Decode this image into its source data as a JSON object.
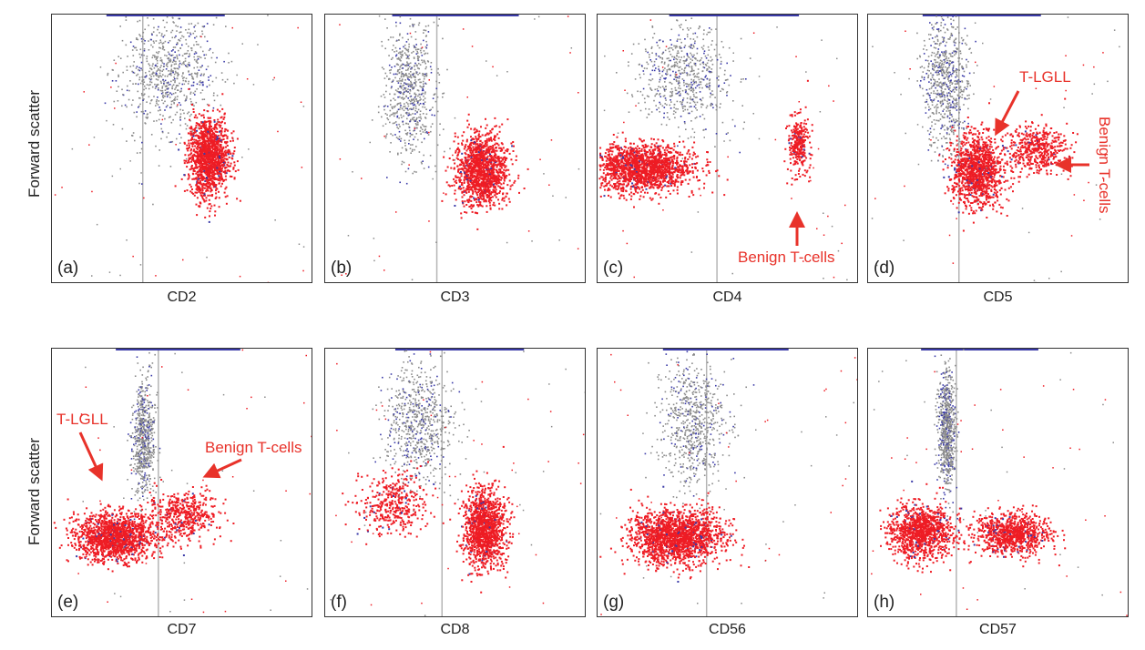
{
  "figure": {
    "y_axis_label": "Forward scatter",
    "colors": {
      "malignant": "#ee1c24",
      "ungated": "#8a8a8a",
      "granulocyte": "#3a3aa8",
      "gate_line": "#b5b5b5",
      "annotation": "#e8322a"
    }
  },
  "chart_data": [
    {
      "type": "scatter",
      "panel": "(a)",
      "xlabel": "CD2",
      "ylabel": "Forward scatter",
      "clusters": [
        {
          "color": "red",
          "center": [
            0.6,
            0.47
          ],
          "spread": [
            0.07,
            0.13
          ],
          "n": 1400
        },
        {
          "color": "gray",
          "center": [
            0.44,
            0.78
          ],
          "spread": [
            0.17,
            0.22
          ],
          "n": 750
        }
      ],
      "gate_x": 0.35,
      "annotations": []
    },
    {
      "type": "scatter",
      "panel": "(b)",
      "xlabel": "CD3",
      "ylabel": "Forward scatter",
      "clusters": [
        {
          "color": "red",
          "center": [
            0.6,
            0.42
          ],
          "spread": [
            0.09,
            0.12
          ],
          "n": 1400
        },
        {
          "color": "gray",
          "center": [
            0.32,
            0.72
          ],
          "spread": [
            0.09,
            0.23
          ],
          "n": 700
        }
      ],
      "gate_x": 0.43,
      "annotations": []
    },
    {
      "type": "scatter",
      "panel": "(c)",
      "xlabel": "CD4",
      "ylabel": "Forward scatter",
      "clusters": [
        {
          "color": "red",
          "center": [
            0.17,
            0.43
          ],
          "spread": [
            0.18,
            0.08
          ],
          "n": 1700
        },
        {
          "color": "red",
          "center": [
            0.77,
            0.52
          ],
          "spread": [
            0.035,
            0.1
          ],
          "n": 300
        },
        {
          "color": "gray",
          "center": [
            0.32,
            0.77
          ],
          "spread": [
            0.16,
            0.17
          ],
          "n": 650
        }
      ],
      "gate_x": 0.46,
      "annotations": [
        "Benign T-cells"
      ]
    },
    {
      "type": "scatter",
      "panel": "(d)",
      "xlabel": "CD5",
      "ylabel": "Forward scatter",
      "clusters": [
        {
          "color": "red",
          "center": [
            0.42,
            0.42
          ],
          "spread": [
            0.09,
            0.12
          ],
          "n": 1200
        },
        {
          "color": "red",
          "center": [
            0.65,
            0.5
          ],
          "spread": [
            0.1,
            0.08
          ],
          "n": 500
        },
        {
          "color": "gray",
          "center": [
            0.3,
            0.74
          ],
          "spread": [
            0.08,
            0.22
          ],
          "n": 700
        }
      ],
      "gate_x": 0.35,
      "annotations": [
        "T-LGLL",
        "Benign T-cells"
      ]
    },
    {
      "type": "scatter",
      "panel": "(e)",
      "xlabel": "CD7",
      "ylabel": "Forward scatter",
      "clusters": [
        {
          "color": "red",
          "center": [
            0.24,
            0.3
          ],
          "spread": [
            0.14,
            0.08
          ],
          "n": 1500
        },
        {
          "color": "red",
          "center": [
            0.5,
            0.38
          ],
          "spread": [
            0.12,
            0.08
          ],
          "n": 500
        },
        {
          "color": "gray",
          "center": [
            0.35,
            0.66
          ],
          "spread": [
            0.04,
            0.2
          ],
          "n": 650
        }
      ],
      "gate_x": 0.41,
      "annotations": [
        "T-LGLL",
        "Benign T-cells"
      ]
    },
    {
      "type": "scatter",
      "panel": "(f)",
      "xlabel": "CD8",
      "ylabel": "Forward scatter",
      "clusters": [
        {
          "color": "red",
          "center": [
            0.61,
            0.33
          ],
          "spread": [
            0.07,
            0.13
          ],
          "n": 1300
        },
        {
          "color": "red",
          "center": [
            0.26,
            0.42
          ],
          "spread": [
            0.12,
            0.1
          ],
          "n": 400
        },
        {
          "color": "gray",
          "center": [
            0.36,
            0.72
          ],
          "spread": [
            0.12,
            0.2
          ],
          "n": 700
        }
      ],
      "gate_x": 0.45,
      "annotations": []
    },
    {
      "type": "scatter",
      "panel": "(g)",
      "xlabel": "CD56",
      "ylabel": "Forward scatter",
      "clusters": [
        {
          "color": "red",
          "center": [
            0.3,
            0.3
          ],
          "spread": [
            0.16,
            0.09
          ],
          "n": 1800
        },
        {
          "color": "gray",
          "center": [
            0.37,
            0.72
          ],
          "spread": [
            0.11,
            0.21
          ],
          "n": 700
        }
      ],
      "gate_x": 0.42,
      "annotations": []
    },
    {
      "type": "scatter",
      "panel": "(h)",
      "xlabel": "CD57",
      "ylabel": "Forward scatter",
      "clusters": [
        {
          "color": "red",
          "center": [
            0.2,
            0.32
          ],
          "spread": [
            0.11,
            0.09
          ],
          "n": 1100
        },
        {
          "color": "red",
          "center": [
            0.55,
            0.31
          ],
          "spread": [
            0.13,
            0.07
          ],
          "n": 900
        },
        {
          "color": "gray",
          "center": [
            0.3,
            0.7
          ],
          "spread": [
            0.03,
            0.2
          ],
          "n": 700
        }
      ],
      "gate_x": 0.34,
      "annotations": []
    }
  ],
  "annotations": {
    "c_benign": "Benign T-cells",
    "d_tlgll": "T-LGLL",
    "d_benign": "Benign T-cells",
    "e_tlgll": "T-LGLL",
    "e_benign": "Benign T-cells"
  }
}
